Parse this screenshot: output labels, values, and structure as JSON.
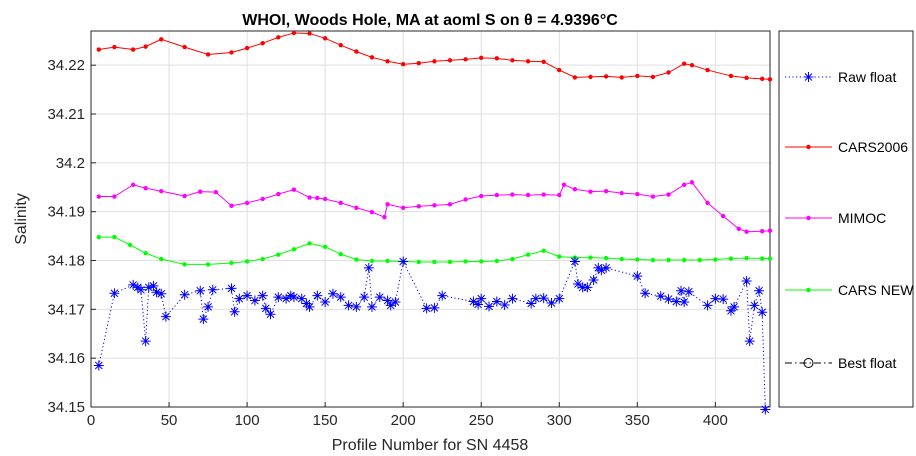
{
  "chart_data": {
    "type": "line",
    "title": "WHOI, Woods Hole, MA at aoml S on θ = 4.9396°C",
    "xlabel": "Profile Number for SN 4458",
    "ylabel": "Salinity",
    "xlim": [
      0,
      435
    ],
    "ylim": [
      34.15,
      34.227
    ],
    "xticks": [
      0,
      50,
      100,
      150,
      200,
      250,
      300,
      350,
      400
    ],
    "yticks": [
      34.15,
      34.16,
      34.17,
      34.18,
      34.19,
      34.2,
      34.21,
      34.22
    ],
    "ytick_labels": [
      "34.15",
      "34.16",
      "34.17",
      "34.18",
      "34.19",
      "34.2",
      "34.21",
      "34.22"
    ],
    "grid": true,
    "legend_position": "outside-right",
    "series": [
      {
        "name": "Raw float",
        "color": "#0000ff",
        "style": "dotted",
        "marker": "asterisk",
        "x": [
          5,
          15,
          27,
          30,
          32,
          35,
          37,
          40,
          42,
          45,
          48,
          60,
          70,
          72,
          75,
          78,
          90,
          92,
          95,
          100,
          105,
          110,
          112,
          115,
          120,
          125,
          128,
          130,
          135,
          138,
          140,
          145,
          150,
          155,
          160,
          165,
          170,
          175,
          178,
          180,
          185,
          190,
          192,
          195,
          200,
          215,
          220,
          225,
          245,
          248,
          250,
          255,
          260,
          265,
          270,
          282,
          285,
          290,
          295,
          300,
          310,
          312,
          315,
          318,
          322,
          325,
          327,
          330,
          350,
          355,
          365,
          370,
          375,
          378,
          380,
          383,
          395,
          400,
          405,
          410,
          412,
          420,
          422,
          425,
          428,
          430,
          432
        ],
        "values": [
          34.1585,
          34.1733,
          34.175,
          34.1745,
          34.174,
          34.1635,
          34.1745,
          34.1748,
          34.1735,
          34.1732,
          34.1685,
          34.173,
          34.1738,
          34.168,
          34.1705,
          34.174,
          34.1743,
          34.1695,
          34.1722,
          34.1728,
          34.1718,
          34.1728,
          34.1702,
          34.169,
          34.1725,
          34.1722,
          34.1728,
          34.1725,
          34.1722,
          34.1712,
          34.1705,
          34.1728,
          34.1715,
          34.1732,
          34.1725,
          34.1708,
          34.1705,
          34.1725,
          34.1785,
          34.1705,
          34.1725,
          34.1718,
          34.1708,
          34.1715,
          34.1798,
          34.1702,
          34.1703,
          34.1728,
          34.1716,
          34.171,
          34.1722,
          34.1706,
          34.1716,
          34.1709,
          34.1722,
          34.1712,
          34.1722,
          34.1723,
          34.1713,
          34.1722,
          34.1798,
          34.1752,
          34.1745,
          34.1745,
          34.176,
          34.1785,
          34.178,
          34.1785,
          34.1768,
          34.1733,
          34.1727,
          34.1721,
          34.1716,
          34.1738,
          34.1715,
          34.1736,
          34.1708,
          34.1722,
          34.1721,
          34.1697,
          34.1705,
          34.1758,
          34.1635,
          34.1708,
          34.1738,
          34.1694,
          34.1495
        ]
      },
      {
        "name": "CARS2006",
        "color": "#ff0000",
        "style": "solid",
        "marker": "dot",
        "x": [
          5,
          15,
          27,
          35,
          45,
          60,
          75,
          90,
          100,
          110,
          120,
          130,
          140,
          150,
          160,
          170,
          180,
          190,
          200,
          210,
          220,
          230,
          240,
          250,
          260,
          270,
          280,
          290,
          300,
          310,
          320,
          330,
          340,
          350,
          360,
          370,
          380,
          385,
          395,
          410,
          420,
          430,
          435
        ],
        "values": [
          34.2232,
          34.2237,
          34.2232,
          34.2238,
          34.2253,
          34.2237,
          34.2222,
          34.2226,
          34.2235,
          34.2245,
          34.2257,
          34.2266,
          34.2265,
          34.2255,
          34.2241,
          34.2228,
          34.2216,
          34.2208,
          34.2202,
          34.2204,
          34.2208,
          34.221,
          34.2212,
          34.2215,
          34.2214,
          34.221,
          34.2208,
          34.2207,
          34.219,
          34.2175,
          34.2176,
          34.2177,
          34.2175,
          34.2178,
          34.2176,
          34.2185,
          34.2203,
          34.22,
          34.219,
          34.2178,
          34.2174,
          34.2172,
          34.2171
        ]
      },
      {
        "name": "MIMOC",
        "color": "#ff00ff",
        "style": "solid",
        "marker": "dot",
        "x": [
          5,
          15,
          27,
          35,
          45,
          60,
          70,
          80,
          90,
          100,
          110,
          120,
          130,
          140,
          145,
          150,
          160,
          170,
          180,
          188,
          190,
          200,
          210,
          220,
          230,
          240,
          250,
          260,
          270,
          280,
          290,
          300,
          303,
          310,
          320,
          330,
          340,
          350,
          360,
          370,
          380,
          385,
          395,
          405,
          415,
          420,
          430,
          435
        ],
        "values": [
          34.1931,
          34.1931,
          34.1955,
          34.1948,
          34.1942,
          34.1932,
          34.1941,
          34.194,
          34.1912,
          34.1918,
          34.1926,
          34.1936,
          34.1945,
          34.1929,
          34.1928,
          34.1926,
          34.1918,
          34.1908,
          34.1899,
          34.1889,
          34.1915,
          34.1908,
          34.1911,
          34.1913,
          34.1915,
          34.1925,
          34.1932,
          34.1934,
          34.1935,
          34.1934,
          34.1935,
          34.1934,
          34.1955,
          34.1946,
          34.1941,
          34.1942,
          34.1938,
          34.1936,
          34.1931,
          34.1935,
          34.1955,
          34.196,
          34.1918,
          34.1891,
          34.1865,
          34.1859,
          34.186,
          34.1861
        ]
      },
      {
        "name": "CARS NEW",
        "color": "#00ff00",
        "style": "solid",
        "marker": "dot",
        "x": [
          5,
          15,
          25,
          35,
          45,
          60,
          75,
          90,
          100,
          110,
          120,
          130,
          140,
          150,
          160,
          170,
          180,
          190,
          200,
          210,
          220,
          230,
          240,
          250,
          260,
          270,
          280,
          290,
          300,
          310,
          320,
          330,
          340,
          350,
          360,
          370,
          380,
          390,
          400,
          410,
          420,
          430,
          435
        ],
        "values": [
          34.1848,
          34.1848,
          34.1832,
          34.1815,
          34.1803,
          34.1792,
          34.1792,
          34.1795,
          34.1798,
          34.1803,
          34.1812,
          34.1823,
          34.1835,
          34.1828,
          34.1813,
          34.1802,
          34.1799,
          34.1799,
          34.1798,
          34.1797,
          34.1797,
          34.1797,
          34.1798,
          34.1798,
          34.1799,
          34.1803,
          34.1812,
          34.182,
          34.1808,
          34.1806,
          34.1806,
          34.1805,
          34.1803,
          34.1802,
          34.1801,
          34.1801,
          34.1801,
          34.1801,
          34.1802,
          34.1804,
          34.1805,
          34.1804,
          34.1804
        ]
      },
      {
        "name": "Best float",
        "color": "#000000",
        "style": "dashdot",
        "marker": "circle",
        "x": [],
        "values": []
      }
    ]
  }
}
